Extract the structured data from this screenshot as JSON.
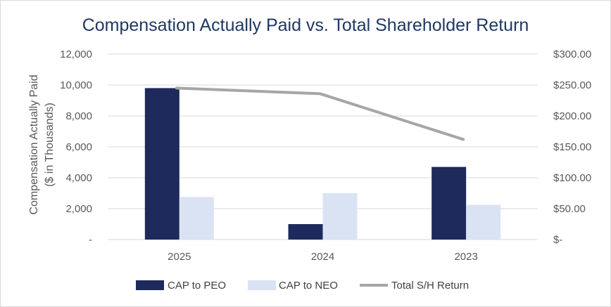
{
  "chart_data": {
    "type": "bar",
    "title": "Compensation Actually Paid vs. Total Shareholder Return",
    "ylabel_lines": [
      "Compensation Actually Paid",
      "($ in Thousands)"
    ],
    "categories": [
      "2025",
      "2024",
      "2023"
    ],
    "ylim": [
      0,
      12000
    ],
    "y_ticks": [
      {
        "value": 0,
        "label": "-"
      },
      {
        "value": 2000,
        "label": "2,000"
      },
      {
        "value": 4000,
        "label": "4,000"
      },
      {
        "value": 6000,
        "label": "6,000"
      },
      {
        "value": 8000,
        "label": "8,000"
      },
      {
        "value": 10000,
        "label": "10,000"
      },
      {
        "value": 12000,
        "label": "12,000"
      }
    ],
    "y2lim": [
      0,
      300
    ],
    "y2_ticks": [
      {
        "value": 0,
        "label": "$-"
      },
      {
        "value": 50,
        "label": "$50.00"
      },
      {
        "value": 100,
        "label": "$100.00"
      },
      {
        "value": 150,
        "label": "$150.00"
      },
      {
        "value": 200,
        "label": "$200.00"
      },
      {
        "value": 250,
        "label": "$250.00"
      },
      {
        "value": 300,
        "label": "$300.00"
      }
    ],
    "series": [
      {
        "name": "CAP to PEO",
        "type": "bar",
        "axis": "left",
        "color": "#1f2a5c",
        "values": [
          9800,
          1000,
          4700
        ]
      },
      {
        "name": "CAP to NEO",
        "type": "bar",
        "axis": "left",
        "color": "#dae3f3",
        "values": [
          2750,
          3000,
          2250
        ]
      },
      {
        "name": "Total S/H Return",
        "type": "line",
        "axis": "right",
        "color": "#a6a6a6",
        "values": [
          245,
          236,
          162
        ]
      }
    ],
    "grid": true,
    "legend": "bottom"
  }
}
